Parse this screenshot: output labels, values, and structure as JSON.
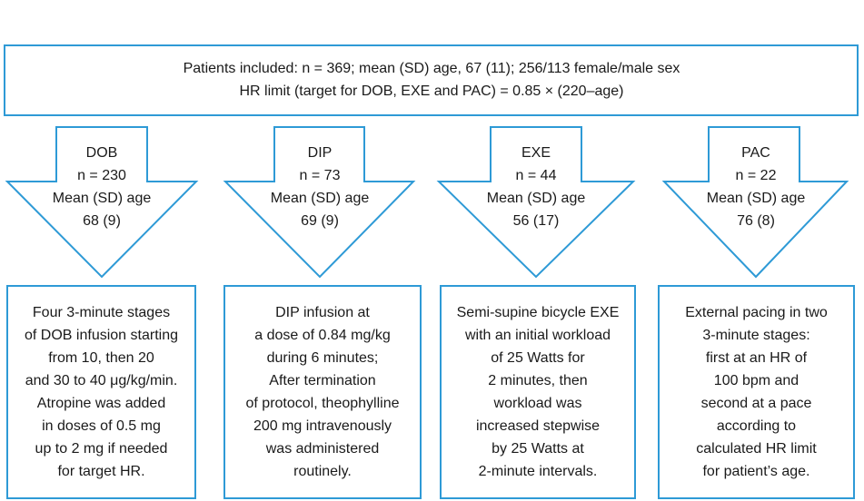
{
  "header": {
    "lines": [
      "Patients included: n = 369; mean (SD) age, 67 (11); 256/113 female/male sex",
      "HR limit (target for DOB, EXE and PAC) = 0.85 × (220–age)"
    ]
  },
  "groups": [
    {
      "arrow_lines": [
        "DOB",
        "n = 230",
        "Mean (SD) age",
        "68 (9)"
      ],
      "box_lines": [
        "Four 3-minute stages",
        "of DOB infusion starting",
        "from 10, then 20",
        "and 30 to 40 μg/kg/min.",
        "Atropine was added",
        "in doses of 0.5 mg",
        "up to 2 mg if needed",
        "for target HR."
      ]
    },
    {
      "arrow_lines": [
        "DIP",
        "n = 73",
        "Mean (SD) age",
        "69 (9)"
      ],
      "box_lines": [
        "DIP infusion at",
        "a dose of 0.84 mg/kg",
        "during 6 minutes;",
        "After termination",
        "of protocol, theophylline",
        "200 mg intravenously",
        "was administered",
        "routinely."
      ]
    },
    {
      "arrow_lines": [
        "EXE",
        "n = 44",
        "Mean (SD) age",
        "56 (17)"
      ],
      "box_lines": [
        "Semi-supine bicycle EXE",
        "with an initial workload",
        "of 25 Watts for",
        "2 minutes, then",
        "workload was",
        "increased stepwise",
        "by 25 Watts at",
        "2-minute intervals."
      ]
    },
    {
      "arrow_lines": [
        "PAC",
        "n = 22",
        "Mean (SD) age",
        "76 (8)"
      ],
      "box_lines": [
        "External pacing in two",
        "3-minute stages:",
        "first at an HR of",
        "100 bpm and",
        "second at a pace",
        "according to",
        "calculated HR limit",
        "for patient’s age."
      ]
    }
  ]
}
